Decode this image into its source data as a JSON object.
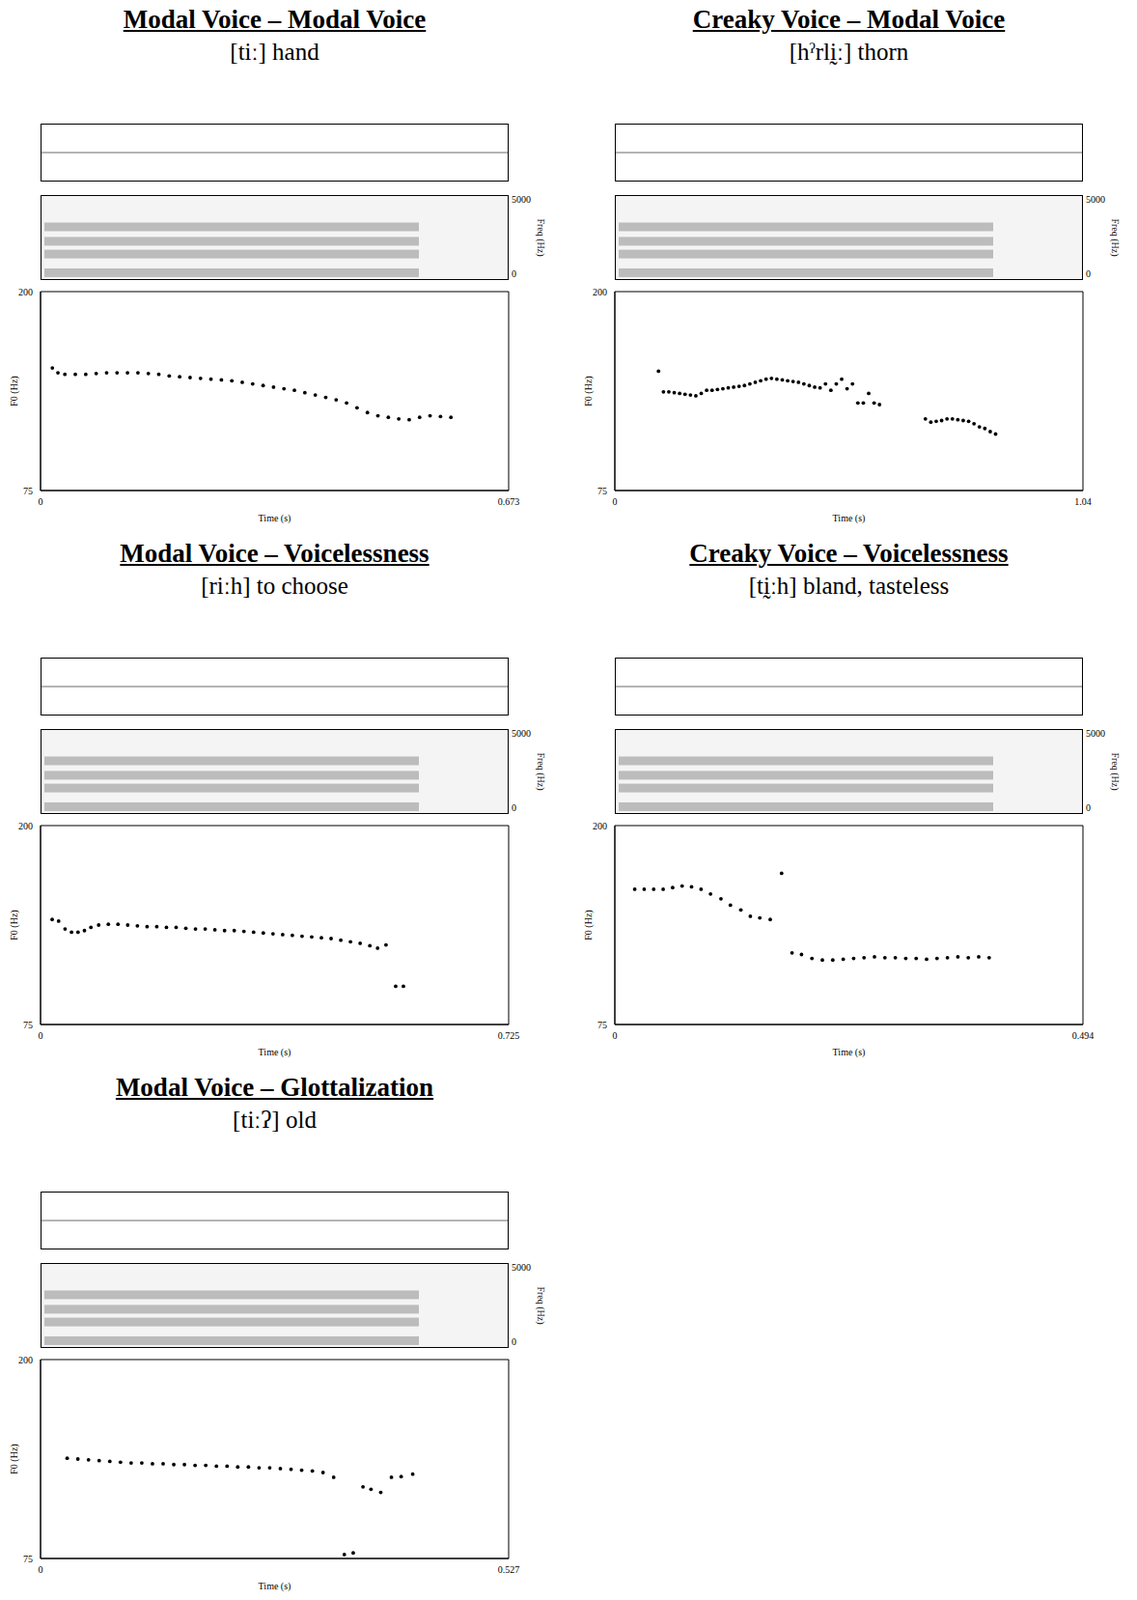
{
  "chart_data": [
    {
      "type": "scatter",
      "title": "Modal Voice – Modal Voice",
      "subtitle": "[tiː] hand",
      "xlabel": "Time (s)",
      "ylabel": "F0 (Hz)",
      "xlim": [
        0,
        0.673
      ],
      "xticks": [
        0,
        0.673
      ],
      "ylim": [
        75,
        200
      ],
      "yticks": [
        75,
        200
      ],
      "color": "#000000",
      "marker": "circle",
      "spectrogram": {
        "ylim": [
          0,
          5000
        ],
        "yticks": [
          0,
          5000
        ],
        "ylabel": "Freq (Hz)"
      },
      "x": [
        0.017,
        0.025,
        0.035,
        0.05,
        0.065,
        0.08,
        0.095,
        0.11,
        0.125,
        0.14,
        0.155,
        0.17,
        0.185,
        0.2,
        0.215,
        0.23,
        0.245,
        0.26,
        0.275,
        0.29,
        0.305,
        0.32,
        0.335,
        0.35,
        0.365,
        0.38,
        0.395,
        0.41,
        0.425,
        0.44,
        0.455,
        0.47,
        0.485,
        0.5,
        0.515,
        0.53,
        0.545,
        0.56,
        0.575,
        0.59
      ],
      "values": [
        152,
        149,
        148,
        148,
        148,
        148.5,
        149,
        149,
        149,
        149,
        148.5,
        148,
        147,
        146.5,
        146,
        145.5,
        145,
        144.5,
        144,
        143,
        142,
        141,
        140,
        139,
        138,
        136.5,
        135,
        133.5,
        132,
        130,
        127,
        124,
        122,
        121,
        120,
        119.5,
        121,
        122,
        121.5,
        121
      ]
    },
    {
      "type": "scatter",
      "title": "Creaky Voice – Modal Voice",
      "subtitle": "[hˀrlḭː] thorn",
      "xlabel": "Time (s)",
      "ylabel": "F0 (Hz)",
      "xlim": [
        0,
        1.04
      ],
      "xticks": [
        0,
        1.04
      ],
      "ylim": [
        75,
        200
      ],
      "yticks": [
        75,
        200
      ],
      "color": "#000000",
      "marker": "circle",
      "spectrogram": {
        "ylim": [
          0,
          5000
        ],
        "yticks": [
          0,
          5000
        ],
        "ylabel": "Freq (Hz)"
      },
      "x": [
        0.097,
        0.108,
        0.12,
        0.132,
        0.144,
        0.156,
        0.168,
        0.18,
        0.192,
        0.204,
        0.216,
        0.228,
        0.24,
        0.252,
        0.264,
        0.276,
        0.288,
        0.3,
        0.312,
        0.324,
        0.336,
        0.348,
        0.36,
        0.372,
        0.384,
        0.396,
        0.408,
        0.42,
        0.432,
        0.444,
        0.456,
        0.468,
        0.48,
        0.492,
        0.504,
        0.516,
        0.528,
        0.54,
        0.552,
        0.564,
        0.576,
        0.588,
        0.69,
        0.702,
        0.714,
        0.726,
        0.738,
        0.75,
        0.762,
        0.774,
        0.786,
        0.798,
        0.81,
        0.822,
        0.834,
        0.846
      ],
      "values": [
        150,
        137,
        137,
        136.5,
        136,
        135.5,
        135,
        134.5,
        136,
        138,
        138,
        138.5,
        139,
        139.5,
        140,
        140.5,
        141,
        142,
        143,
        144,
        145,
        145.5,
        145,
        144.5,
        144,
        143.5,
        143,
        142,
        141,
        140,
        139.5,
        142,
        138,
        142,
        145,
        139,
        142,
        130,
        130,
        136,
        130,
        129,
        120,
        118,
        118.5,
        119,
        120,
        120,
        119.5,
        119,
        118.5,
        117,
        115,
        114,
        112,
        110.5
      ]
    },
    {
      "type": "scatter",
      "title": "Modal Voice – Voicelessness",
      "subtitle": "[riːh] to choose",
      "xlabel": "Time (s)",
      "ylabel": "F0 (Hz)",
      "xlim": [
        0,
        0.725
      ],
      "xticks": [
        0,
        0.725
      ],
      "ylim": [
        75,
        200
      ],
      "yticks": [
        75,
        200
      ],
      "color": "#000000",
      "marker": "circle",
      "spectrogram": {
        "ylim": [
          0,
          5000
        ],
        "yticks": [
          0,
          5000
        ],
        "ylabel": "Freq (Hz)"
      },
      "x": [
        0.018,
        0.028,
        0.038,
        0.048,
        0.058,
        0.068,
        0.078,
        0.09,
        0.105,
        0.12,
        0.135,
        0.15,
        0.165,
        0.18,
        0.195,
        0.21,
        0.225,
        0.24,
        0.255,
        0.27,
        0.285,
        0.3,
        0.315,
        0.33,
        0.345,
        0.36,
        0.375,
        0.39,
        0.405,
        0.42,
        0.435,
        0.45,
        0.465,
        0.48,
        0.495,
        0.51,
        0.522,
        0.535,
        0.55,
        0.562
      ],
      "values": [
        141,
        140,
        135,
        133,
        133,
        134,
        136,
        137.5,
        138,
        138,
        137.5,
        137,
        136.5,
        136.5,
        136,
        136,
        135.5,
        135,
        135,
        134.5,
        134,
        134,
        133.5,
        133,
        132.5,
        132,
        131.5,
        131,
        130.5,
        130,
        129.5,
        129,
        128,
        127,
        126,
        124.5,
        123,
        125,
        99,
        99
      ]
    },
    {
      "type": "scatter",
      "title": "Creaky Voice – Voicelessness",
      "subtitle": "[tḭːh] bland, tasteless",
      "xlabel": "Time (s)",
      "ylabel": "F0 (Hz)",
      "xlim": [
        0,
        0.494
      ],
      "xticks": [
        0,
        0.494
      ],
      "ylim": [
        75,
        200
      ],
      "yticks": [
        75,
        200
      ],
      "color": "#000000",
      "marker": "circle",
      "spectrogram": {
        "ylim": [
          0,
          5000
        ],
        "yticks": [
          0,
          5000
        ],
        "ylabel": "Freq (Hz)"
      },
      "x": [
        0.021,
        0.031,
        0.041,
        0.051,
        0.061,
        0.071,
        0.081,
        0.091,
        0.101,
        0.112,
        0.122,
        0.133,
        0.143,
        0.153,
        0.164,
        0.176,
        0.187,
        0.197,
        0.208,
        0.219,
        0.23,
        0.241,
        0.252,
        0.263,
        0.274,
        0.285,
        0.296,
        0.307,
        0.318,
        0.329,
        0.34,
        0.351,
        0.362,
        0.373,
        0.384,
        0.395
      ],
      "values": [
        160,
        160,
        160,
        160,
        161,
        162,
        161.5,
        160,
        157,
        154,
        150,
        147,
        143,
        142,
        141,
        170,
        120,
        119,
        116.5,
        115.5,
        115.5,
        116,
        116.5,
        117,
        117.5,
        117,
        117,
        116.5,
        116.5,
        116,
        116.5,
        117,
        117.5,
        117,
        117.5,
        117
      ]
    },
    {
      "type": "scatter",
      "title": "Modal Voice – Glottalization",
      "subtitle": "[tiːʔ] old",
      "xlabel": "Time (s)",
      "ylabel": "F0 (Hz)",
      "xlim": [
        0,
        0.527
      ],
      "xticks": [
        0,
        0.527
      ],
      "ylim": [
        75,
        200
      ],
      "yticks": [
        75,
        200
      ],
      "color": "#000000",
      "marker": "circle",
      "spectrogram": {
        "ylim": [
          0,
          5000
        ],
        "yticks": [
          0,
          5000
        ],
        "ylabel": "Freq (Hz)"
      },
      "x": [
        0.03,
        0.042,
        0.054,
        0.066,
        0.078,
        0.09,
        0.102,
        0.114,
        0.126,
        0.138,
        0.15,
        0.162,
        0.174,
        0.186,
        0.198,
        0.21,
        0.222,
        0.234,
        0.246,
        0.258,
        0.27,
        0.282,
        0.294,
        0.306,
        0.318,
        0.33,
        0.342,
        0.352,
        0.363,
        0.372,
        0.383,
        0.395,
        0.406,
        0.419
      ],
      "values": [
        138,
        137.5,
        137,
        136.5,
        136,
        135.5,
        135,
        135,
        134.5,
        134.5,
        134,
        134,
        133.5,
        133.5,
        133,
        133,
        132.5,
        132.5,
        132,
        132,
        131.5,
        131,
        130.5,
        130,
        129,
        126,
        77.5,
        78.5,
        120,
        118.5,
        116.5,
        126,
        126.5,
        128
      ]
    }
  ]
}
